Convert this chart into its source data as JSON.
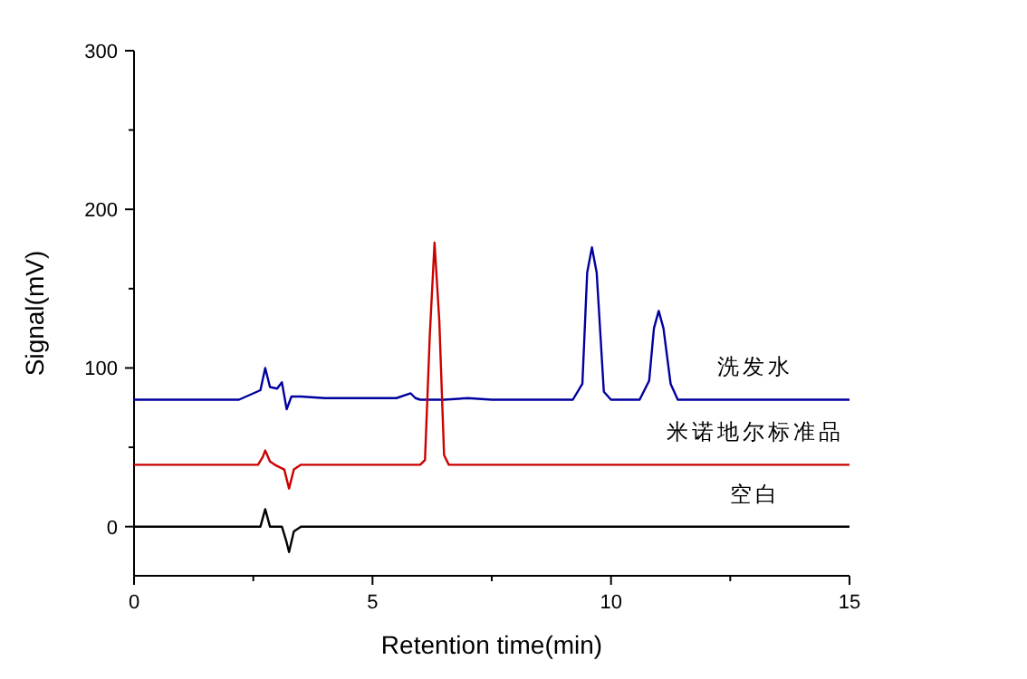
{
  "chart_data": {
    "type": "line",
    "xlabel": "Retention time(min)",
    "ylabel": "Signal(mV)",
    "xlim": [
      0,
      15
    ],
    "ylim": [
      -31,
      300
    ],
    "xticks": [
      0,
      {
        "value": 2.5,
        "label": null
      },
      5,
      {
        "value": 7.5,
        "label": null
      },
      10,
      {
        "value": 12.5,
        "label": null
      },
      15
    ],
    "yticks": [
      0,
      {
        "value": 50,
        "label": null
      },
      100,
      {
        "value": 150,
        "label": null
      },
      200,
      {
        "value": 250,
        "label": null
      },
      300
    ],
    "grid": false,
    "legend": false,
    "marker": "none",
    "line_style": "solid",
    "series": [
      {
        "name": "洗发水",
        "color": "#0000a0",
        "x": [
          0,
          2.2,
          2.5,
          2.65,
          2.75,
          2.85,
          3.0,
          3.1,
          3.2,
          3.3,
          3.5,
          4.0,
          5.0,
          5.5,
          5.8,
          5.9,
          6.0,
          6.5,
          7.0,
          7.5,
          8.0,
          9.2,
          9.4,
          9.5,
          9.6,
          9.7,
          9.85,
          10.0,
          10.6,
          10.8,
          10.9,
          11.0,
          11.1,
          11.25,
          11.4,
          15
        ],
        "values": [
          80,
          80,
          84,
          86,
          100,
          88,
          87,
          91,
          74,
          82,
          82,
          81,
          81,
          81,
          84,
          81,
          80,
          80,
          81,
          80,
          80,
          80,
          90,
          160,
          176,
          160,
          85,
          80,
          80,
          92,
          125,
          136,
          125,
          90,
          80,
          80
        ]
      },
      {
        "name": "米诺地尔标准品",
        "color": "#cc0000",
        "x": [
          0,
          2.6,
          2.7,
          2.75,
          2.85,
          2.95,
          3.15,
          3.25,
          3.35,
          3.5,
          6.0,
          6.1,
          6.2,
          6.3,
          6.4,
          6.5,
          6.6,
          15
        ],
        "values": [
          39,
          39,
          44,
          48,
          41,
          39,
          36,
          24,
          36,
          39,
          39,
          42,
          120,
          179,
          130,
          45,
          39,
          39
        ]
      },
      {
        "name": "空白",
        "color": "#000000",
        "x": [
          0,
          2.65,
          2.75,
          2.85,
          3.1,
          3.2,
          3.25,
          3.35,
          3.5,
          15
        ],
        "values": [
          0,
          0,
          11,
          0,
          0,
          -10,
          -16,
          -3,
          0,
          0
        ]
      }
    ]
  }
}
